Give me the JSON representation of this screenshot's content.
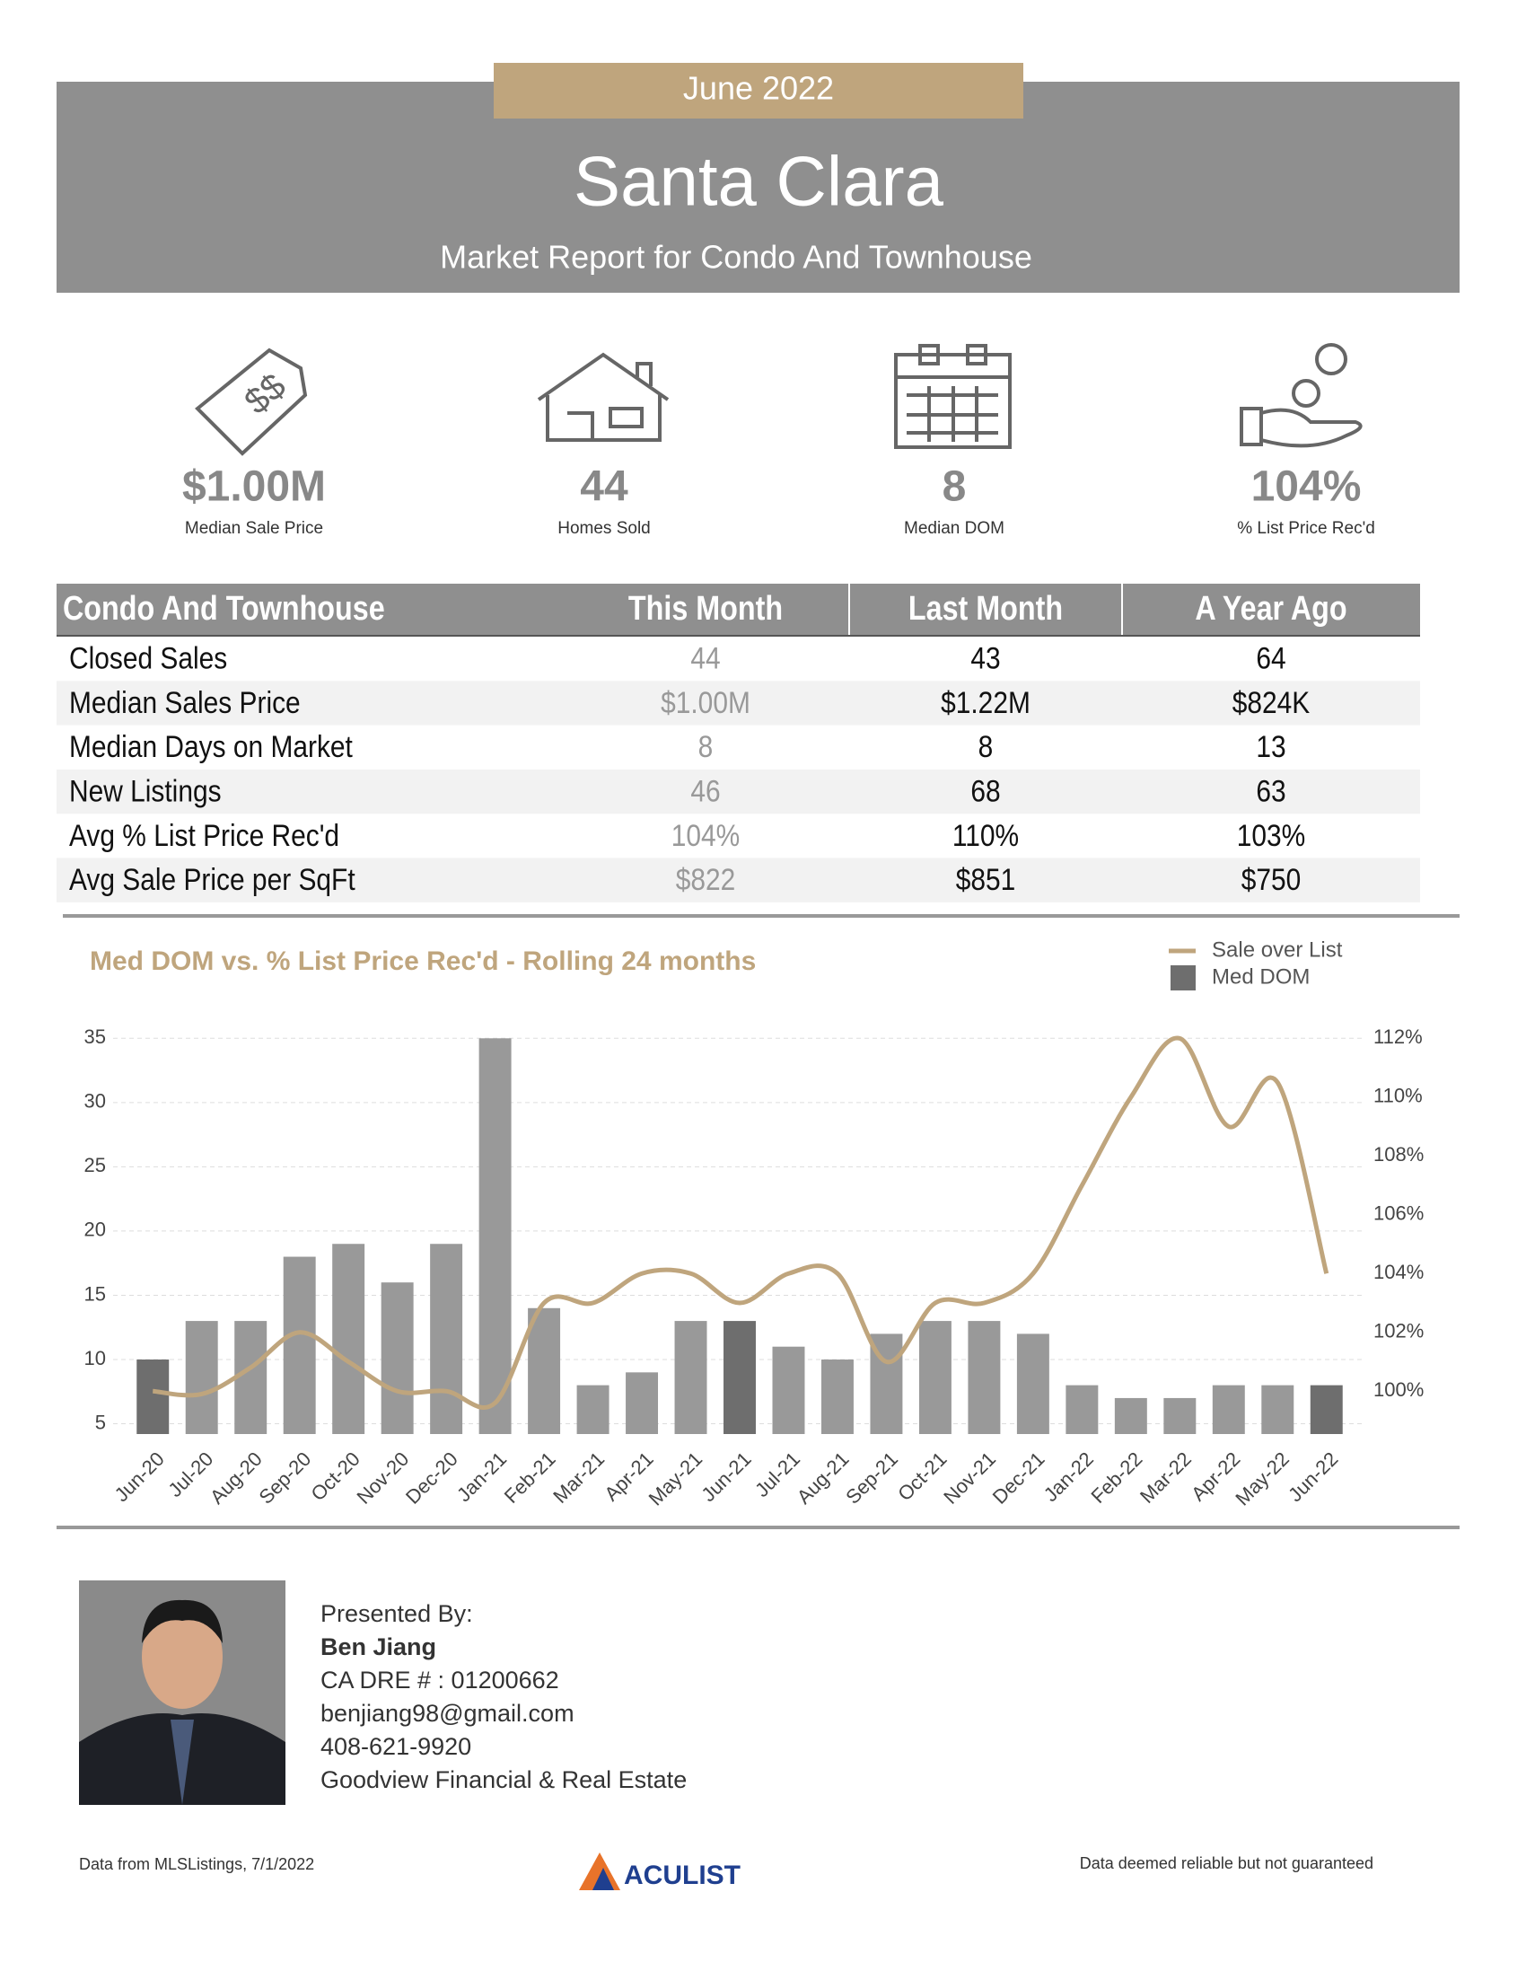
{
  "header": {
    "month": "June 2022",
    "title": "Santa Clara",
    "subtitle": "Market Report for Condo And Townhouse"
  },
  "stats": [
    {
      "value": "$1.00M",
      "label": "Median Sale Price"
    },
    {
      "value": "44",
      "label": "Homes Sold"
    },
    {
      "value": "8",
      "label": "Median DOM"
    },
    {
      "value": "104%",
      "label": "% List Price Rec'd"
    }
  ],
  "table": {
    "header": [
      "Condo And Townhouse",
      "This Month",
      "Last Month",
      "A Year Ago"
    ],
    "rows": [
      [
        "Closed Sales",
        "44",
        "43",
        "64"
      ],
      [
        "Median Sales Price",
        "$1.00M",
        "$1.22M",
        "$824K"
      ],
      [
        "Median Days on Market",
        "8",
        "8",
        "13"
      ],
      [
        "New Listings",
        "46",
        "68",
        "63"
      ],
      [
        "Avg % List Price Rec'd",
        "104%",
        "110%",
        "103%"
      ],
      [
        "Avg Sale Price per SqFt",
        "$822",
        "$851",
        "$750"
      ]
    ]
  },
  "chart_data": {
    "type": "bar",
    "title": "Med DOM  vs. % List Price Rec'd - Rolling 24 months",
    "legend": "upper right",
    "grid": true,
    "categories": [
      "Jun-20",
      "Jul-20",
      "Aug-20",
      "Sep-20",
      "Oct-20",
      "Nov-20",
      "Dec-20",
      "Jan-21",
      "Feb-21",
      "Mar-21",
      "Apr-21",
      "May-21",
      "Jun-21",
      "Jul-21",
      "Aug-21",
      "Sep-21",
      "Oct-21",
      "Nov-21",
      "Dec-21",
      "Jan-22",
      "Feb-22",
      "Mar-22",
      "Apr-22",
      "May-22",
      "Jun-22"
    ],
    "series": [
      {
        "name": "Sale over List",
        "type": "line",
        "axis": "y2",
        "color": "#bfa57d",
        "values": [
          100,
          99.9,
          100.8,
          102,
          101,
          100,
          100,
          99.6,
          103,
          103,
          104,
          104,
          103,
          104,
          104,
          101,
          103,
          103,
          104,
          107,
          110,
          112,
          109,
          110.5,
          104
        ]
      },
      {
        "name": "Med DOM",
        "type": "bar",
        "color": "#6e6e6e",
        "values": [
          10,
          13,
          13,
          18,
          19,
          16,
          19,
          35,
          14,
          8,
          9,
          13,
          13,
          11,
          10,
          12,
          13,
          13,
          12,
          8,
          7,
          7,
          8,
          8,
          8
        ],
        "colors": [
          "#6e6e6e",
          "#999999",
          "#999999",
          "#999999",
          "#999999",
          "#999999",
          "#999999",
          "#999999",
          "#999999",
          "#999999",
          "#999999",
          "#999999",
          "#6e6e6e",
          "#999999",
          "#999999",
          "#999999",
          "#999999",
          "#999999",
          "#999999",
          "#999999",
          "#999999",
          "#999999",
          "#999999",
          "#999999",
          "#6e6e6e"
        ]
      }
    ],
    "ylim": [
      4.2,
      36
    ],
    "yticks": [
      5,
      10,
      15,
      20,
      25,
      30,
      35
    ],
    "y2lim": [
      98.54,
      112.44
    ],
    "y2ticks": [
      {
        "value": 100,
        "label": "100%"
      },
      {
        "value": 102,
        "label": "102%"
      },
      {
        "value": 104,
        "label": "104%"
      },
      {
        "value": 106,
        "label": "106%"
      },
      {
        "value": 108,
        "label": "108%"
      },
      {
        "value": 110,
        "label": "110%"
      },
      {
        "value": 112,
        "label": "112%"
      }
    ]
  },
  "agent": {
    "presented_by": "Presented By:",
    "name": "Ben Jiang",
    "license": "CA DRE # : 01200662",
    "email": "benjiang98@gmail.com",
    "phone": "408-621-9920",
    "company": "Goodview Financial & Real Estate"
  },
  "footer": {
    "source": "Data from MLSListings, 7/1/2022",
    "logo": "ACULIST",
    "disclaimer": "Data deemed reliable but not guaranteed"
  }
}
